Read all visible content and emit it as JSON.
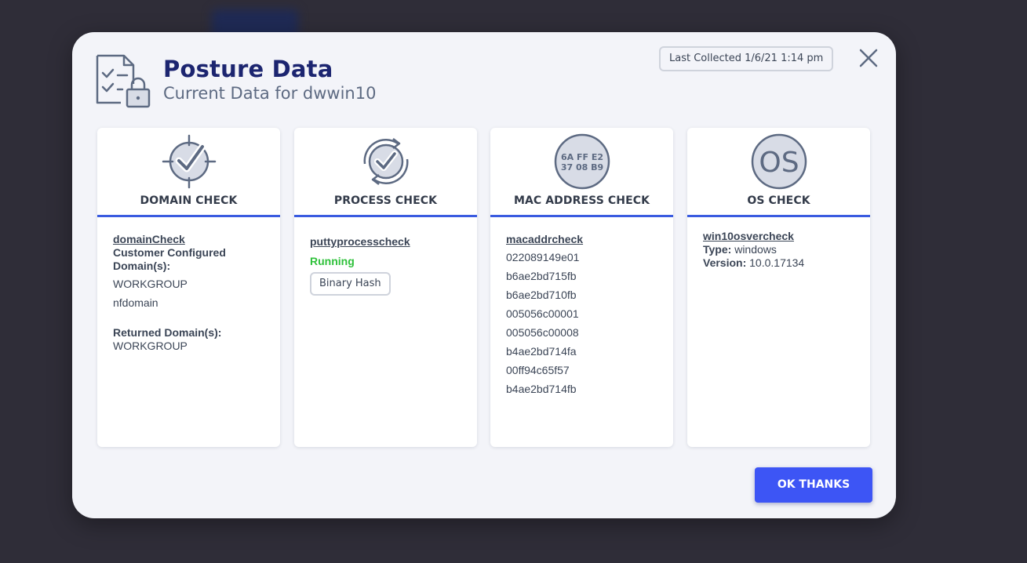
{
  "modal": {
    "title": "Posture Data",
    "subtitle": "Current Data for dwwin10",
    "last_collected": "Last Collected 1/6/21 1:14 pm",
    "ok_label": "OK THANKS",
    "accent_color": "#3a5be0",
    "button_color": "#3d55f5",
    "icons": [
      "checklist-lock-icon",
      "close-icon"
    ]
  },
  "cards": {
    "domain": {
      "title": "DOMAIN CHECK",
      "icon": "target-check-icon",
      "check_name": "domainCheck",
      "configured_label": "Customer Configured Domain(s):",
      "configured_domains": [
        "WORKGROUP",
        "nfdomain"
      ],
      "returned_label": "Returned Domain(s):",
      "returned_domains": [
        "WORKGROUP"
      ]
    },
    "process": {
      "title": "PROCESS CHECK",
      "icon": "refresh-check-icon",
      "check_name": "puttyprocesscheck",
      "status": "Running",
      "status_color": "#2fc13b",
      "button_label": "Binary Hash"
    },
    "mac": {
      "title": "MAC ADDRESS CHECK",
      "icon": "mac-address-icon",
      "icon_line1": "6A FF E2",
      "icon_line2": "37 08 B9",
      "check_name": "macaddrcheck",
      "addresses": [
        "022089149e01",
        "b6ae2bd715fb",
        "b6ae2bd710fb",
        "005056c00001",
        "005056c00008",
        "b4ae2bd714fa",
        "00ff94c65f57",
        "b4ae2bd714fb"
      ]
    },
    "os": {
      "title": "OS CHECK",
      "icon": "os-icon",
      "icon_text": "OS",
      "check_name": "win10osvercheck",
      "type_label": "Type:",
      "type_value": "windows",
      "version_label": "Version:",
      "version_value": "10.0.17134"
    }
  }
}
